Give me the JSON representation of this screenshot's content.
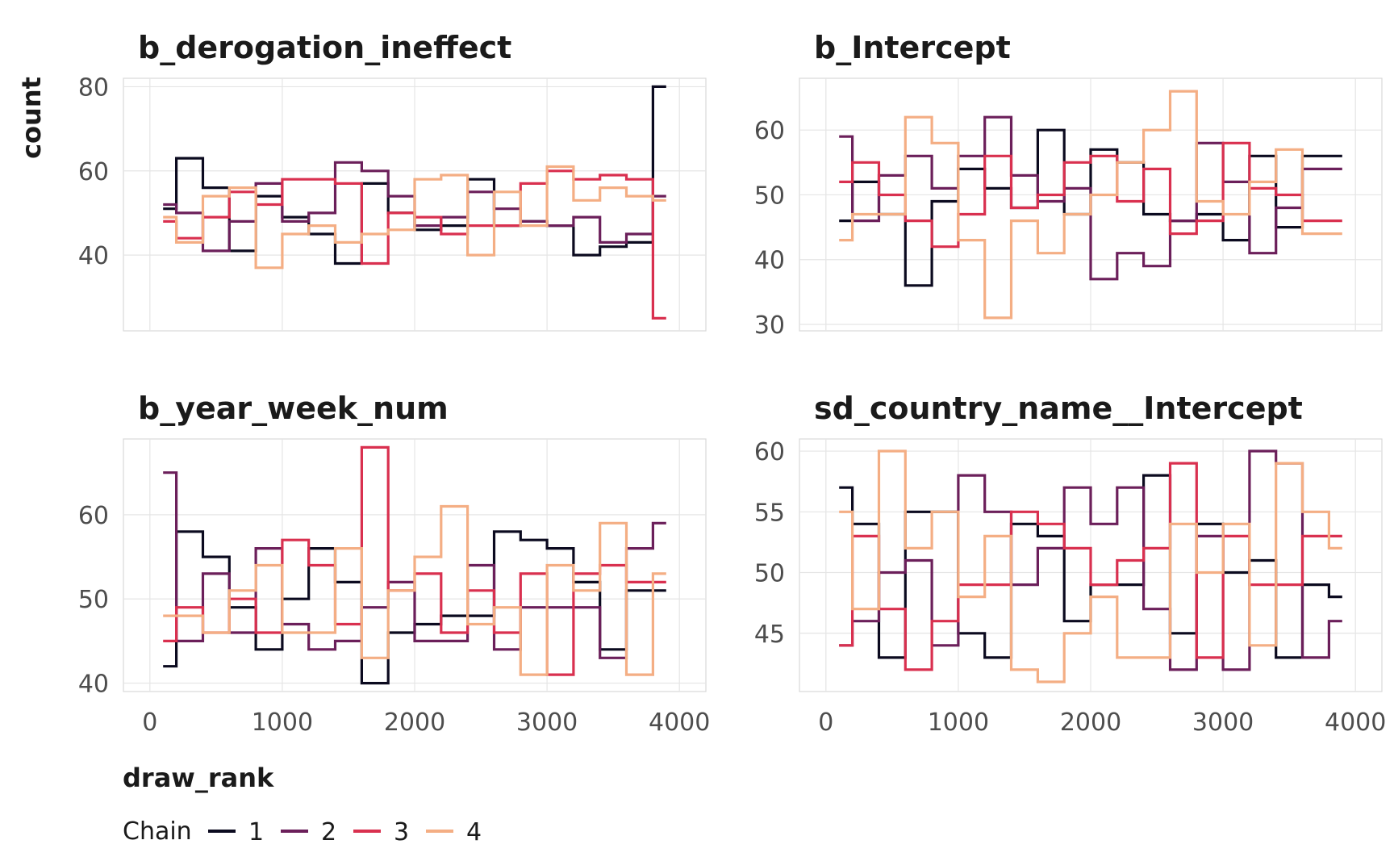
{
  "chart_data": {
    "type": "line",
    "xlabel": "draw_rank",
    "ylabel": "count",
    "grid": true,
    "legend": {
      "title": "Chain",
      "position": "bottom-left",
      "entries": [
        "1",
        "2",
        "3",
        "4"
      ]
    },
    "series_colors": {
      "1": "#0b0a1f",
      "2": "#6b1f5a",
      "3": "#d9304f",
      "4": "#f4ae84"
    },
    "x_ticks": [
      0,
      1000,
      2000,
      3000,
      4000
    ],
    "x_range": [
      -200,
      4200
    ],
    "bin_edges": [
      100,
      300,
      500,
      700,
      900,
      1100,
      1300,
      1500,
      1700,
      1900,
      2100,
      2300,
      2500,
      2700,
      2900,
      3100,
      3300,
      3500,
      3700,
      3900
    ],
    "panels": [
      {
        "title": "b_derogation_ineffect",
        "ylim": [
          22,
          82
        ],
        "y_ticks": [
          40,
          60,
          80
        ],
        "series": [
          {
            "name": "1",
            "values": [
              51,
              63,
              56,
              41,
              54,
              49,
              45,
              38,
              57,
              50,
              46,
              47,
              58,
              47,
              48,
              47,
              40,
              42,
              43,
              80
            ]
          },
          {
            "name": "2",
            "values": [
              52,
              50,
              41,
              48,
              57,
              48,
              50,
              62,
              60,
              54,
              47,
              49,
              55,
              51,
              48,
              47,
              49,
              43,
              45,
              54
            ]
          },
          {
            "name": "3",
            "values": [
              48,
              44,
              49,
              55,
              52,
              58,
              58,
              57,
              38,
              50,
              49,
              45,
              47,
              47,
              57,
              60,
              58,
              59,
              58,
              25
            ]
          },
          {
            "name": "4",
            "values": [
              49,
              43,
              54,
              56,
              37,
              45,
              47,
              43,
              45,
              46,
              58,
              59,
              40,
              55,
              47,
              61,
              53,
              56,
              54,
              53
            ]
          }
        ]
      },
      {
        "title": "b_Intercept",
        "ylim": [
          29,
          68
        ],
        "y_ticks": [
          30,
          40,
          50,
          60
        ],
        "series": [
          {
            "name": "1",
            "values": [
              46,
              52,
              47,
              36,
              49,
              54,
              51,
              48,
              60,
              47,
              57,
              55,
              47,
              46,
              47,
              43,
              56,
              45,
              56,
              56
            ]
          },
          {
            "name": "2",
            "values": [
              59,
              46,
              53,
              56,
              51,
              56,
              62,
              53,
              49,
              51,
              37,
              41,
              39,
              46,
              58,
              52,
              41,
              48,
              54,
              54
            ]
          },
          {
            "name": "3",
            "values": [
              52,
              55,
              50,
              46,
              42,
              47,
              56,
              48,
              50,
              55,
              56,
              49,
              54,
              44,
              46,
              58,
              51,
              50,
              46,
              46
            ]
          },
          {
            "name": "4",
            "values": [
              43,
              47,
              47,
              62,
              58,
              43,
              31,
              46,
              41,
              47,
              50,
              55,
              60,
              66,
              49,
              47,
              52,
              57,
              44,
              44
            ]
          }
        ]
      },
      {
        "title": "b_year_week_num",
        "ylim": [
          39,
          69
        ],
        "y_ticks": [
          40,
          50,
          60
        ],
        "series": [
          {
            "name": "1",
            "values": [
              42,
              58,
              55,
              49,
              44,
              50,
              56,
              52,
              40,
              46,
              47,
              48,
              48,
              58,
              57,
              56,
              52,
              44,
              51,
              51
            ]
          },
          {
            "name": "2",
            "values": [
              65,
              45,
              53,
              46,
              56,
              47,
              44,
              45,
              49,
              52,
              45,
              45,
              54,
              44,
              49,
              49,
              49,
              43,
              56,
              59
            ]
          },
          {
            "name": "3",
            "values": [
              45,
              49,
              46,
              50,
              46,
              57,
              54,
              47,
              68,
              51,
              53,
              46,
              51,
              46,
              53,
              41,
              53,
              54,
              52,
              52
            ]
          },
          {
            "name": "4",
            "values": [
              48,
              48,
              46,
              51,
              54,
              46,
              46,
              56,
              43,
              51,
              55,
              61,
              47,
              49,
              41,
              54,
              51,
              59,
              41,
              53
            ]
          }
        ]
      },
      {
        "title": "sd_country_name__Intercept",
        "ylim": [
          40.2,
          61
        ],
        "y_ticks": [
          45,
          50,
          55,
          60
        ],
        "series": [
          {
            "name": "1",
            "values": [
              57,
              54,
              43,
              55,
              55,
              45,
              43,
              54,
              53,
              46,
              49,
              49,
              58,
              45,
              54,
              50,
              51,
              43,
              49,
              48
            ]
          },
          {
            "name": "2",
            "values": [
              44,
              46,
              50,
              51,
              44,
              58,
              55,
              49,
              52,
              57,
              54,
              57,
              47,
              42,
              53,
              42,
              60,
              59,
              43,
              46
            ]
          },
          {
            "name": "3",
            "values": [
              44,
              53,
              47,
              42,
              46,
              49,
              49,
              55,
              54,
              52,
              49,
              51,
              52,
              59,
              43,
              53,
              49,
              49,
              53,
              53
            ]
          },
          {
            "name": "4",
            "values": [
              55,
              47,
              60,
              52,
              55,
              48,
              53,
              42,
              41,
              45,
              48,
              43,
              43,
              54,
              50,
              54,
              44,
              59,
              55,
              52
            ]
          }
        ]
      }
    ]
  }
}
